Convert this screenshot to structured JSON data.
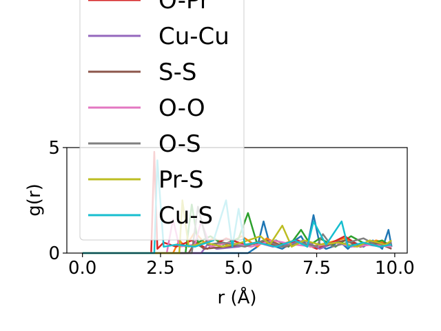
{
  "chart_data": {
    "type": "line",
    "title": "",
    "xlabel": "r (Å)",
    "ylabel": "g(r)",
    "xlim": [
      -0.5,
      10.4
    ],
    "ylim": [
      0,
      5
    ],
    "xticks": [
      "0.0",
      "2.5",
      "5.0",
      "7.5",
      "10.0"
    ],
    "xtick_values": [
      0,
      2.5,
      5.0,
      7.5,
      10.0
    ],
    "yticks": [
      "0",
      "5"
    ],
    "ytick_values": [
      0,
      5
    ],
    "grid": false,
    "legend_position": "upper-left",
    "series": [
      {
        "name": "",
        "color": "#1f77b4",
        "x": [
          0,
          5.3,
          5.6,
          5.8,
          6.0,
          6.4,
          6.7,
          7.0,
          7.2,
          7.4,
          7.6,
          7.8,
          8.0,
          8.2,
          8.5,
          8.7,
          9.0,
          9.3,
          9.6,
          9.8,
          9.9
        ],
        "y": [
          0,
          0,
          0.3,
          1.5,
          0.4,
          0.2,
          0.5,
          0.8,
          0.3,
          1.8,
          0.4,
          0.2,
          0.3,
          0.6,
          0.2,
          0.5,
          0.3,
          0.6,
          0.2,
          1.1,
          0.3
        ]
      },
      {
        "name": "",
        "color": "#ff7f0e",
        "x": [
          0,
          2.9,
          3.1,
          3.3,
          3.6,
          3.9,
          4.2,
          4.6,
          5.1,
          5.6,
          5.9,
          6.3,
          6.8,
          7.3,
          7.9,
          8.4,
          8.9,
          9.4,
          9.9
        ],
        "y": [
          0,
          0,
          0.6,
          0.3,
          1.0,
          0.5,
          0.7,
          0.4,
          0.8,
          0.3,
          0.7,
          0.4,
          0.6,
          0.3,
          0.5,
          0.7,
          0.3,
          0.6,
          0.4
        ]
      },
      {
        "name": "",
        "color": "#2ca02c",
        "x": [
          0,
          3.3,
          3.5,
          3.7,
          4.1,
          4.5,
          5.0,
          5.3,
          5.6,
          6.2,
          6.6,
          7.0,
          7.3,
          7.6,
          8.1,
          8.6,
          9.1,
          9.6,
          9.9
        ],
        "y": [
          0,
          0,
          2.3,
          0.5,
          0.8,
          0.4,
          0.7,
          1.9,
          0.4,
          0.6,
          0.3,
          1.1,
          0.4,
          0.7,
          0.3,
          0.8,
          0.4,
          0.6,
          0.3
        ]
      },
      {
        "name": "O-Pr",
        "color": "#d62728",
        "x": [
          0,
          2.2,
          2.3,
          2.4,
          2.6,
          3.0,
          3.5,
          4.0,
          4.6,
          5.2,
          5.8,
          6.4,
          6.9,
          7.5,
          8.0,
          8.4,
          8.9,
          9.4,
          9.9
        ],
        "y": [
          0,
          0,
          4.8,
          0.2,
          0.5,
          0.3,
          0.6,
          0.2,
          0.7,
          0.4,
          0.5,
          0.3,
          0.6,
          0.2,
          0.5,
          0.8,
          0.3,
          0.5,
          0.4
        ]
      },
      {
        "name": "Cu-Cu",
        "color": "#9467bd",
        "x": [
          0,
          3.8,
          4.0,
          4.3,
          5.0,
          5.6,
          6.1,
          6.6,
          7.1,
          7.6,
          8.1,
          8.6,
          9.1,
          9.6,
          9.9
        ],
        "y": [
          0,
          0,
          0.4,
          0.2,
          0.3,
          0.5,
          0.3,
          0.4,
          0.6,
          0.2,
          0.5,
          0.3,
          0.4,
          0.3,
          0.5
        ]
      },
      {
        "name": "S-S",
        "color": "#8c564b",
        "x": [
          0,
          3.4,
          3.6,
          3.9,
          4.6,
          5.2,
          5.9,
          6.5,
          7.0,
          7.4,
          7.9,
          8.4,
          8.9,
          9.4,
          9.9
        ],
        "y": [
          0,
          0,
          0.5,
          0.2,
          0.3,
          0.4,
          0.6,
          0.3,
          0.5,
          0.3,
          0.4,
          0.6,
          0.3,
          0.5,
          0.2
        ]
      },
      {
        "name": "O-O",
        "color": "#e377c2",
        "x": [
          0,
          2.7,
          2.9,
          3.1,
          3.6,
          3.8,
          4.1,
          4.7,
          5.4,
          6.1,
          6.8,
          7.4,
          8.1,
          8.7,
          9.3,
          9.9
        ],
        "y": [
          0,
          0,
          1.6,
          0.3,
          0.4,
          1.5,
          0.3,
          0.5,
          0.3,
          0.6,
          0.4,
          0.3,
          0.5,
          0.3,
          0.4,
          0.3
        ]
      },
      {
        "name": "O-S",
        "color": "#7f7f7f",
        "x": [
          0,
          3.5,
          3.7,
          4.0,
          4.5,
          5.2,
          5.8,
          6.4,
          7.0,
          7.5,
          7.7,
          8.0,
          8.5,
          9.0,
          9.5,
          9.9
        ],
        "y": [
          0,
          0,
          2.2,
          0.4,
          0.5,
          0.3,
          0.6,
          0.3,
          0.5,
          0.3,
          0.9,
          0.3,
          0.5,
          0.7,
          0.3,
          0.5
        ]
      },
      {
        "name": "Pr-S",
        "color": "#bcbd22",
        "x": [
          0,
          3.1,
          3.2,
          3.4,
          3.9,
          4.5,
          5.1,
          5.7,
          6.0,
          6.4,
          6.7,
          7.1,
          7.6,
          8.2,
          8.8,
          9.2,
          9.7,
          9.9
        ],
        "y": [
          0,
          0,
          2.5,
          0.3,
          0.5,
          0.3,
          0.5,
          0.8,
          0.4,
          1.3,
          0.3,
          0.6,
          0.4,
          0.5,
          0.3,
          0.6,
          0.4,
          0.6
        ]
      },
      {
        "name": "Cu-S",
        "color": "#17becf",
        "x": [
          0,
          2.3,
          2.4,
          2.6,
          3.0,
          3.6,
          4.2,
          4.6,
          4.8,
          5.0,
          5.2,
          5.6,
          6.2,
          6.8,
          7.2,
          7.4,
          7.8,
          8.3,
          8.5,
          9.0,
          9.5,
          9.9
        ],
        "y": [
          0,
          0,
          4.4,
          0.3,
          0.4,
          0.3,
          0.6,
          2.5,
          0.3,
          2.1,
          0.4,
          0.5,
          0.3,
          0.6,
          0.3,
          1.5,
          0.4,
          1.5,
          0.3,
          0.5,
          0.3,
          0.4
        ]
      }
    ],
    "legend": [
      "O-Pr",
      "Cu-Cu",
      "S-S",
      "O-O",
      "O-S",
      "Pr-S",
      "Cu-S"
    ]
  }
}
